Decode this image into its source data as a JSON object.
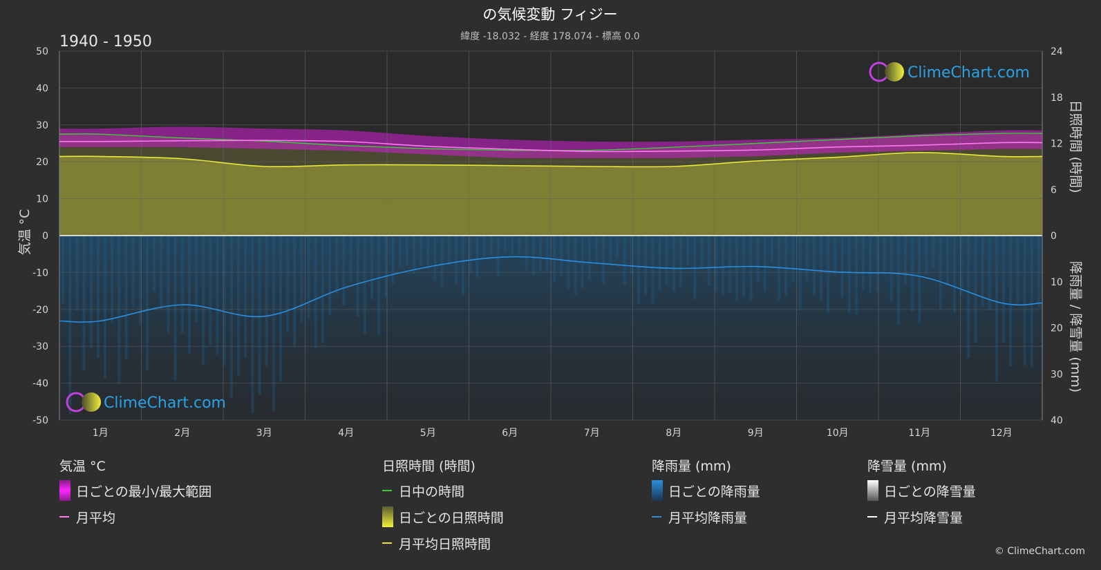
{
  "title": "の気候変動 フィジー",
  "subtitle": "緯度 -18.032 - 経度 178.074 - 標高 0.0",
  "period": "1940 - 1950",
  "logo_text": "ClimeChart.com",
  "copyright": "© ClimeChart.com",
  "axes": {
    "left_label": "気温 °C",
    "right_top_label": "日照時間 (時間)",
    "right_bottom_label": "降雨量 / 降雪量 (mm)",
    "left_ticks": [
      "50",
      "40",
      "30",
      "20",
      "10",
      "0",
      "-10",
      "-20",
      "-30",
      "-40",
      "-50"
    ],
    "right_top_ticks": [
      "24",
      "18",
      "12",
      "6",
      "0"
    ],
    "right_bottom_ticks": [
      "10",
      "20",
      "30",
      "40"
    ]
  },
  "legend": {
    "temp": {
      "header": "気温 °C",
      "range": "日ごとの最小/最大範囲",
      "avg": "月平均"
    },
    "sun": {
      "header": "日照時間 (時間)",
      "daylight": "日中の時間",
      "daily": "日ごとの日照時間",
      "avg": "月平均日照時間"
    },
    "rain": {
      "header": "降雨量 (mm)",
      "daily": "日ごとの降雨量",
      "avg": "月平均降雨量"
    },
    "snow": {
      "header": "降雪量 (mm)",
      "daily": "日ごとの降雪量",
      "avg": "月平均降雪量"
    }
  },
  "colors": {
    "background": "#2e2e2e",
    "temp_range": "#d21ed2",
    "temp_avg": "#ff7af0",
    "daylight": "#3ccc3c",
    "sunshine_fill": "#9b9b32",
    "sunshine_avg": "#e8e83a",
    "rain_fill": "#1f5f8f",
    "rain_avg": "#2a8fe0",
    "snow": "#ffffff"
  },
  "chart_data": {
    "type": "line",
    "categories": [
      "1月",
      "2月",
      "3月",
      "4月",
      "5月",
      "6月",
      "7月",
      "8月",
      "9月",
      "10月",
      "11月",
      "12月"
    ],
    "temperature_ylim": [
      -50,
      50
    ],
    "sunshine_ylim": [
      0,
      24
    ],
    "precipitation_ylim": [
      0,
      40
    ],
    "series": [
      {
        "name": "月平均",
        "axis": "temperature",
        "values": [
          25.5,
          25.7,
          25.8,
          25.5,
          24.2,
          23.4,
          22.8,
          22.9,
          23.2,
          24.0,
          24.5,
          25.2
        ]
      },
      {
        "name": "日中の時間",
        "axis": "sunshine",
        "values": [
          13.2,
          12.7,
          12.3,
          11.7,
          11.3,
          11.1,
          11.1,
          11.5,
          12.0,
          12.5,
          13.0,
          13.3
        ]
      },
      {
        "name": "月平均日照時間",
        "axis": "sunshine",
        "values": [
          10.3,
          10.0,
          9.0,
          9.2,
          9.2,
          9.1,
          9.0,
          9.0,
          9.7,
          10.2,
          10.8,
          10.3
        ]
      },
      {
        "name": "月平均降雨量",
        "axis": "precipitation",
        "values": [
          18.5,
          15.0,
          17.5,
          11.2,
          6.8,
          4.6,
          5.9,
          7.1,
          6.7,
          7.9,
          8.8,
          14.6
        ]
      }
    ],
    "daily_temp_range": {
      "min": [
        24.0,
        24.0,
        23.5,
        23.0,
        22.0,
        21.0,
        21.0,
        21.0,
        21.5,
        22.5,
        23.0,
        23.5
      ],
      "max": [
        29.0,
        29.5,
        29.0,
        28.5,
        27.0,
        26.0,
        25.5,
        25.5,
        26.0,
        26.5,
        27.5,
        28.5
      ]
    },
    "grid": true
  }
}
